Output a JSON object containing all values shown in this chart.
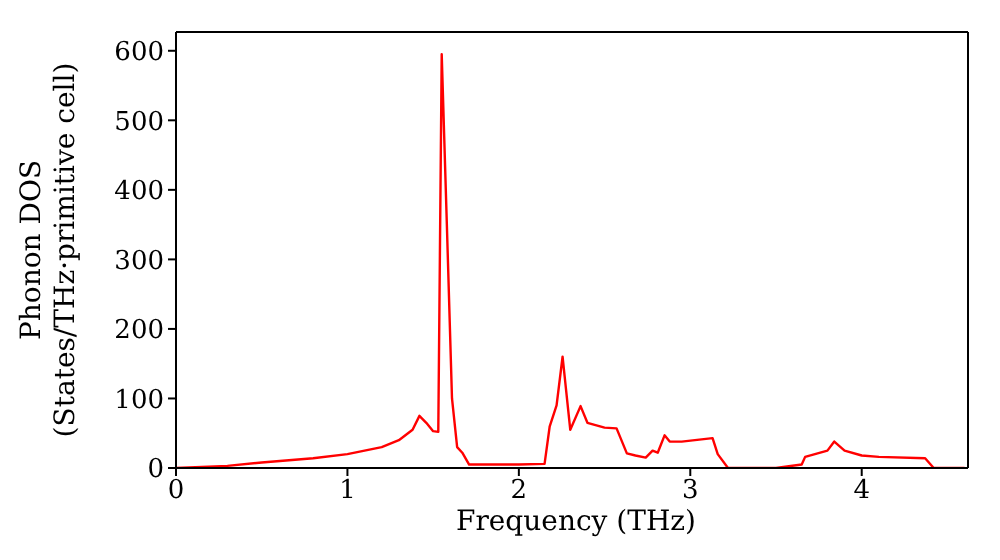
{
  "chart_data": {
    "type": "line",
    "xlabel": "Frequency (THz)",
    "ylabel": "Phonon DOS\n(States/THz·primitive cell)",
    "xlim": [
      0,
      4.62
    ],
    "ylim": [
      0,
      627
    ],
    "xticks": [
      0,
      1,
      2,
      3,
      4
    ],
    "yticks": [
      0,
      100,
      200,
      300,
      400,
      500,
      600
    ],
    "marker": "none",
    "line_style": "solid",
    "x": [
      0,
      0.3,
      0.5,
      0.8,
      1.0,
      1.2,
      1.3,
      1.38,
      1.42,
      1.46,
      1.5,
      1.53,
      1.55,
      1.58,
      1.61,
      1.64,
      1.67,
      1.71,
      2.0,
      2.15,
      2.18,
      2.22,
      2.255,
      2.3,
      2.36,
      2.4,
      2.5,
      2.57,
      2.63,
      2.68,
      2.74,
      2.78,
      2.81,
      2.85,
      2.88,
      2.95,
      3.13,
      3.16,
      3.22,
      3.5,
      3.65,
      3.67,
      3.8,
      3.84,
      3.9,
      4.0,
      4.1,
      4.37,
      4.42,
      4.6
    ],
    "series": [
      {
        "color": "#ff0000",
        "values": [
          0,
          3,
          8,
          14,
          20,
          30,
          40,
          55,
          75,
          65,
          53,
          52,
          595,
          350,
          100,
          30,
          22,
          5,
          5,
          6,
          60,
          90,
          160,
          55,
          89,
          65,
          58,
          57,
          21,
          18,
          15,
          25,
          22,
          47,
          38,
          38,
          43,
          20,
          0,
          0,
          5,
          16,
          25,
          38,
          25,
          18,
          16,
          14,
          0,
          0
        ]
      }
    ]
  }
}
